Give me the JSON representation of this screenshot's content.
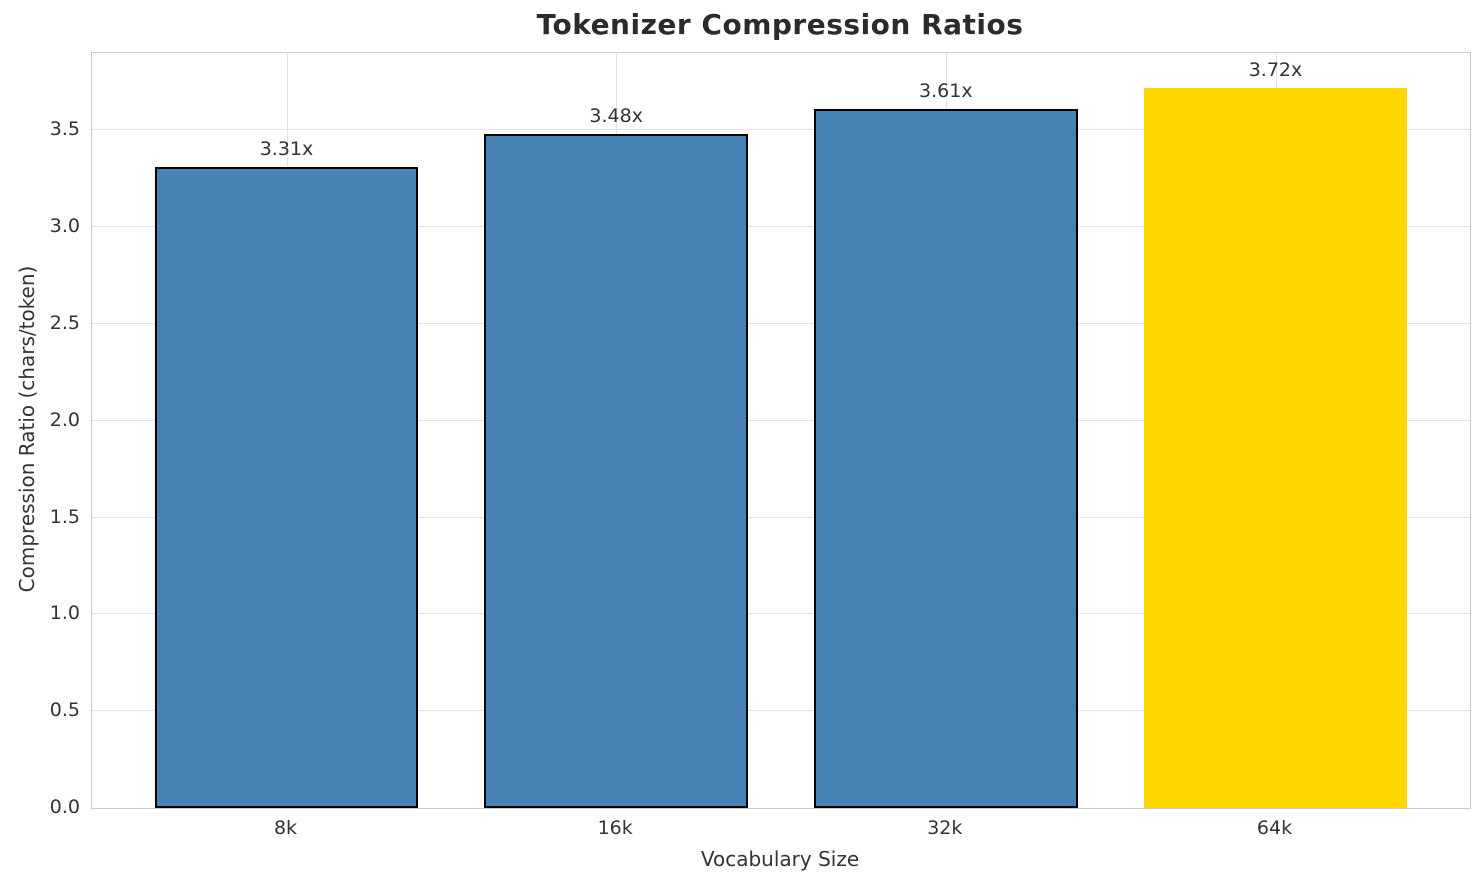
{
  "title": "Tokenizer Compression Ratios",
  "chart_data": {
    "type": "bar",
    "title": "Tokenizer Compression Ratios",
    "xlabel": "Vocabulary Size",
    "ylabel": "Compression Ratio (chars/token)",
    "categories": [
      "8k",
      "16k",
      "32k",
      "64k"
    ],
    "values": [
      3.31,
      3.48,
      3.61,
      3.72
    ],
    "value_labels": [
      "3.31x",
      "3.48x",
      "3.61x",
      "3.72x"
    ],
    "bar_colors": [
      "#4682b4",
      "#4682b4",
      "#4682b4",
      "#ffd700"
    ],
    "bar_edge_colors": [
      "#000000",
      "#000000",
      "#000000",
      "none"
    ],
    "yticks": [
      0.0,
      0.5,
      1.0,
      1.5,
      2.0,
      2.5,
      3.0,
      3.5
    ],
    "ytick_labels": [
      "0.0",
      "0.5",
      "1.0",
      "1.5",
      "2.0",
      "2.5",
      "3.0",
      "3.5"
    ],
    "ylim": [
      0,
      3.9
    ],
    "bar_width_units": 0.8,
    "x_margin_fraction": 0.05,
    "grid": true,
    "legend": "none",
    "grid_color": "#e3e3e3",
    "spine_color": "#cbcbcb",
    "text_color": "#333333",
    "title_color": "#2b2b2b",
    "background_color": "#ffffff"
  }
}
